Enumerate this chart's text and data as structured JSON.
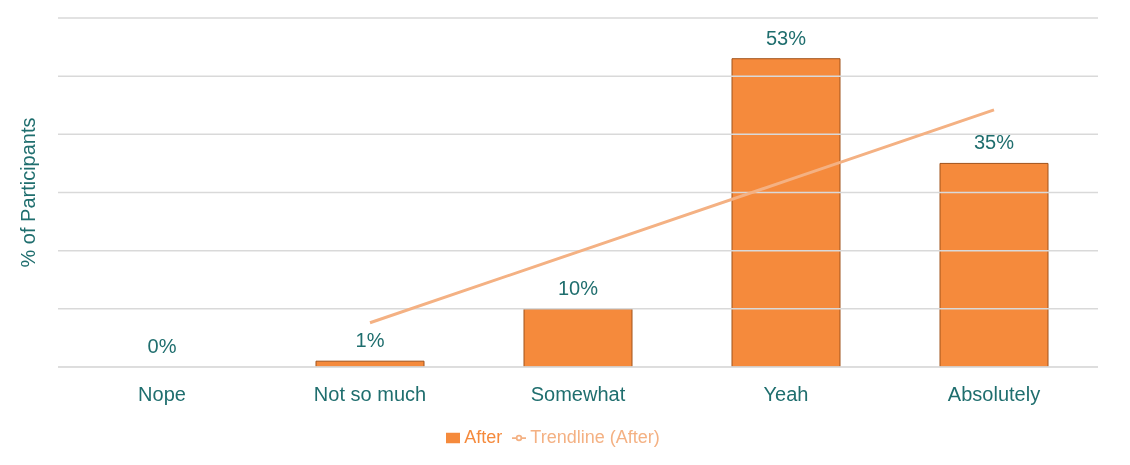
{
  "chart_data": {
    "type": "bar",
    "ylabel": "% of Participants",
    "categories": [
      "Nope",
      "Not so much",
      "Somewhat",
      "Yeah",
      "Absolutely"
    ],
    "series": [
      {
        "name": "After",
        "color": "#f58a3c",
        "values": [
          0,
          1,
          10,
          53,
          35
        ],
        "value_labels": [
          "0%",
          "1%",
          "10%",
          "53%",
          "35%"
        ]
      },
      {
        "name": "Trendline (After)",
        "type": "line",
        "color": "#f4b183",
        "values": [
          null,
          7.6,
          19.8,
          32,
          44.2
        ]
      }
    ],
    "ylim": [
      0,
      60
    ],
    "yticks": [
      {
        "value": 0,
        "label": null
      },
      {
        "value": 10,
        "label": null
      },
      {
        "value": 20,
        "label": null
      },
      {
        "value": 30,
        "label": null
      },
      {
        "value": 40,
        "label": null
      },
      {
        "value": 50,
        "label": null
      },
      {
        "value": 60,
        "label": null
      }
    ],
    "tick_labels": "x",
    "grid": "y",
    "legend": "bottom"
  }
}
